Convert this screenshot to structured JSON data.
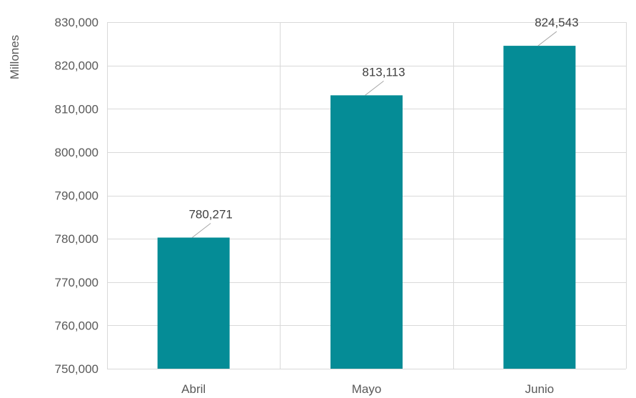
{
  "chart_data": {
    "type": "bar",
    "title": "",
    "xlabel": "",
    "ylabel": "Millones",
    "categories": [
      "Abril",
      "Mayo",
      "Junio"
    ],
    "values": [
      780271,
      813113,
      824543
    ],
    "data_labels": [
      "780,271",
      "813,113",
      "824,543"
    ],
    "ylim": [
      750000,
      830000
    ],
    "y_ticks": [
      750000,
      760000,
      770000,
      780000,
      790000,
      800000,
      810000,
      820000,
      830000
    ],
    "y_tick_labels": [
      "750,000",
      "760,000",
      "770,000",
      "780,000",
      "790,000",
      "800,000",
      "810,000",
      "820,000",
      "830,000"
    ],
    "grid": true,
    "bar_color": "#058C96",
    "legend": "none"
  }
}
